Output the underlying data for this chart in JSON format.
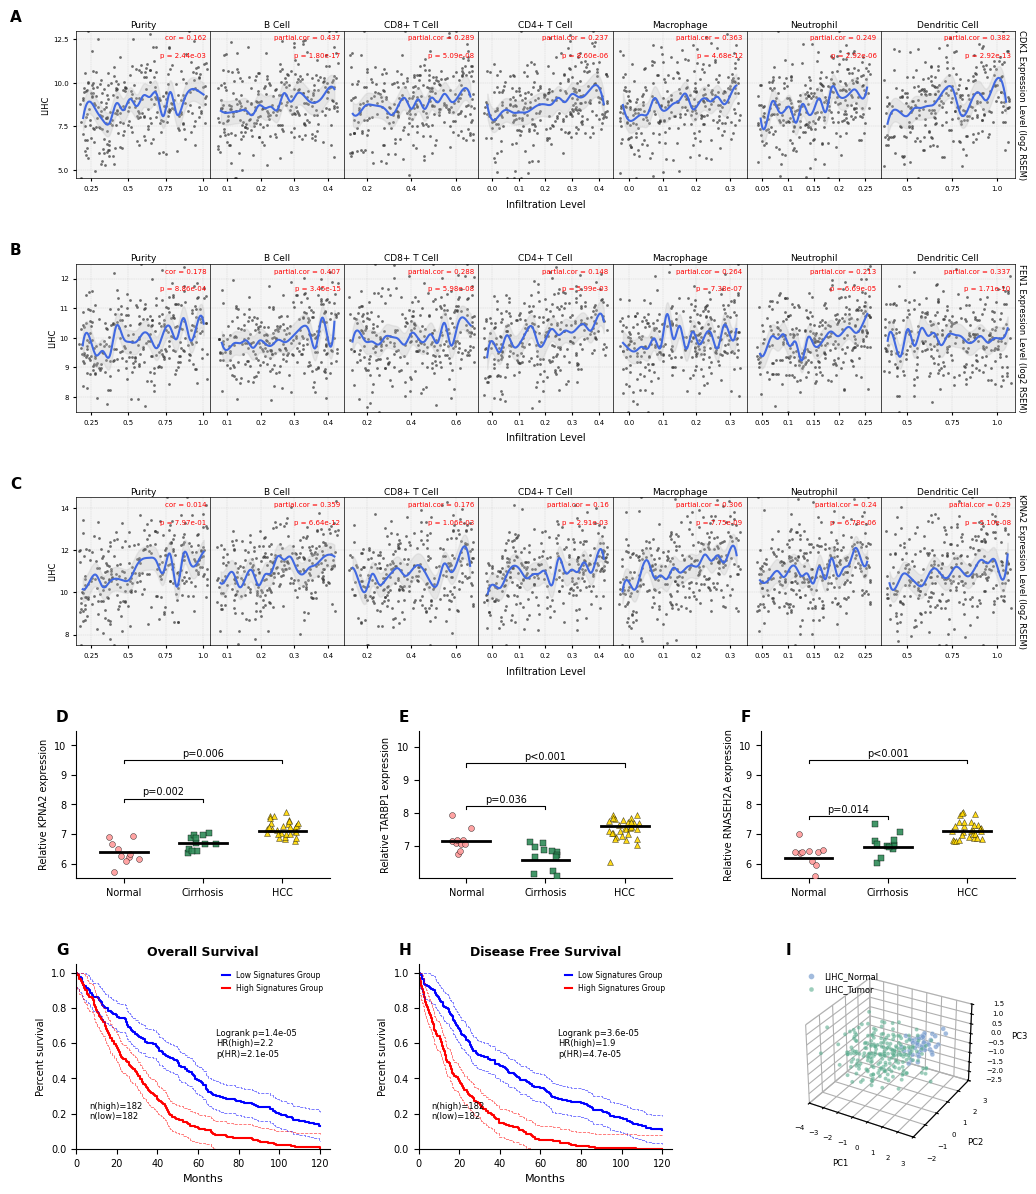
{
  "panel_labels": [
    "A",
    "B",
    "C",
    "D",
    "E",
    "F",
    "G",
    "H",
    "I"
  ],
  "scatter_titles": [
    "Purity",
    "B Cell",
    "CD8+ T Cell",
    "CD4+ T Cell",
    "Macrophage",
    "Neutrophil",
    "Dendritic Cell"
  ],
  "row_A": {
    "gene": "CDK1",
    "ylabel": "CDK1 Expression Level (log2 RSEM)",
    "ylim": [
      4.5,
      13
    ],
    "yticks": [
      5.0,
      7.5,
      10.0,
      12.5
    ],
    "panels": [
      {
        "label": "Purity",
        "cor_text": "cor = 0.162",
        "p_text": "p = 2.44e-03",
        "xlim": [
          0.15,
          1.05
        ],
        "xticks": [
          0.25,
          0.5,
          0.75,
          1.0
        ]
      },
      {
        "label": "B Cell",
        "cor_text": "partial.cor = 0.437",
        "p_text": "p = 1.80e-17",
        "xlim": [
          0.05,
          0.45
        ],
        "xticks": [
          0.1,
          0.2,
          0.3,
          0.4
        ]
      },
      {
        "label": "CD8+ T Cell",
        "cor_text": "partial.cor = 0.289",
        "p_text": "p = 5.09e-08",
        "xlim": [
          0.1,
          0.7
        ],
        "xticks": [
          0.2,
          0.4,
          0.6
        ]
      },
      {
        "label": "CD4+ T Cell",
        "cor_text": "partial.cor = 0.237",
        "p_text": "p = 8.60e-06",
        "xlim": [
          -0.05,
          0.45
        ],
        "xticks": [
          0.0,
          0.1,
          0.2,
          0.3,
          0.4
        ]
      },
      {
        "label": "Macrophage",
        "cor_text": "partial.cor = 0.363",
        "p_text": "p = 4.68e-12",
        "xlim": [
          -0.05,
          0.35
        ],
        "xticks": [
          0.0,
          0.1,
          0.2,
          0.3
        ]
      },
      {
        "label": "Neutrophil",
        "cor_text": "partial.cor = 0.249",
        "p_text": "p = 2.92e-06",
        "xlim": [
          0.02,
          0.28
        ],
        "xticks": [
          0.05,
          0.1,
          0.15,
          0.2,
          0.25
        ]
      },
      {
        "label": "Dendritic Cell",
        "cor_text": "partial.cor = 0.382",
        "p_text": "p = 2.92e-13",
        "xlim": [
          0.35,
          1.1
        ],
        "xticks": [
          0.5,
          0.75,
          1.0
        ]
      }
    ]
  },
  "row_B": {
    "gene": "FEN1",
    "ylabel": "FEN1 Expression Level (log2 RSEM)",
    "ylim": [
      7.5,
      12.5
    ],
    "yticks": [
      8,
      9,
      10,
      11,
      12
    ],
    "panels": [
      {
        "label": "Purity",
        "cor_text": "cor = 0.178",
        "p_text": "p = 8.86e-04",
        "xlim": [
          0.15,
          1.05
        ],
        "xticks": [
          0.25,
          0.5,
          0.75,
          1.0
        ]
      },
      {
        "label": "B Cell",
        "cor_text": "partial.cor = 0.407",
        "p_text": "p = 3.45e-15",
        "xlim": [
          0.05,
          0.45
        ],
        "xticks": [
          0.1,
          0.2,
          0.3,
          0.4
        ]
      },
      {
        "label": "CD8+ T Cell",
        "cor_text": "partial.cor = 0.288",
        "p_text": "p = 5.98e-08",
        "xlim": [
          0.1,
          0.7
        ],
        "xticks": [
          0.2,
          0.4,
          0.6
        ]
      },
      {
        "label": "CD4+ T Cell",
        "cor_text": "partial.cor = 0.148",
        "p_text": "p = 5.99e-03",
        "xlim": [
          -0.05,
          0.45
        ],
        "xticks": [
          0.0,
          0.1,
          0.2,
          0.3,
          0.4
        ]
      },
      {
        "label": "Macrophage",
        "cor_text": "partial.cor = 0.264",
        "p_text": "p = 7.38e-07",
        "xlim": [
          -0.05,
          0.35
        ],
        "xticks": [
          0.0,
          0.1,
          0.2,
          0.3
        ]
      },
      {
        "label": "Neutrophil",
        "cor_text": "partial.cor = 0.213",
        "p_text": "p = 6.69e-05",
        "xlim": [
          0.02,
          0.28
        ],
        "xticks": [
          0.05,
          0.1,
          0.15,
          0.2,
          0.25
        ]
      },
      {
        "label": "Dendritic Cell",
        "cor_text": "partial.cor = 0.337",
        "p_text": "p = 1.71e-10",
        "xlim": [
          0.35,
          1.1
        ],
        "xticks": [
          0.5,
          0.75,
          1.0
        ]
      }
    ]
  },
  "row_C": {
    "gene": "KPNA2",
    "ylabel": "KPNA2 Expression Level (log2 RSEM)",
    "ylim": [
      7.5,
      14.5
    ],
    "yticks": [
      8,
      10,
      12,
      14
    ],
    "panels": [
      {
        "label": "Purity",
        "cor_text": "cor = 0.014",
        "p_text": "p = 7.97e-01",
        "xlim": [
          0.15,
          1.05
        ],
        "xticks": [
          0.25,
          0.5,
          0.75,
          1.0
        ]
      },
      {
        "label": "B Cell",
        "cor_text": "partial.cor = 0.359",
        "p_text": "p = 6.64e-12",
        "xlim": [
          0.05,
          0.45
        ],
        "xticks": [
          0.1,
          0.2,
          0.3,
          0.4
        ]
      },
      {
        "label": "CD8+ T Cell",
        "cor_text": "partial.cor = 0.176",
        "p_text": "p = 1.06e-03",
        "xlim": [
          0.1,
          0.7
        ],
        "xticks": [
          0.2,
          0.4,
          0.6
        ]
      },
      {
        "label": "CD4+ T Cell",
        "cor_text": "partial.cor = 0.16",
        "p_text": "p = 2.91e-03",
        "xlim": [
          -0.05,
          0.45
        ],
        "xticks": [
          0.0,
          0.1,
          0.2,
          0.3,
          0.4
        ]
      },
      {
        "label": "Macrophage",
        "cor_text": "partial.cor = 0.306",
        "p_text": "p = 7.75e-09",
        "xlim": [
          -0.05,
          0.35
        ],
        "xticks": [
          0.0,
          0.1,
          0.2,
          0.3
        ]
      },
      {
        "label": "Neutrophil",
        "cor_text": "partial.cor = 0.24",
        "p_text": "p = 6.78e-06",
        "xlim": [
          0.02,
          0.28
        ],
        "xticks": [
          0.05,
          0.1,
          0.15,
          0.2,
          0.25
        ]
      },
      {
        "label": "Dendritic Cell",
        "cor_text": "partial.cor = 0.29",
        "p_text": "p = 5.10e-08",
        "xlim": [
          0.35,
          1.1
        ],
        "xticks": [
          0.5,
          0.75,
          1.0
        ]
      }
    ]
  },
  "dot_plots": {
    "D": {
      "title": "D",
      "ylabel": "Relative KPNA2 expression",
      "groups": [
        "Normal",
        "Cirrhosis",
        "HCC"
      ],
      "colors": [
        "#FF9999",
        "#2E8B57",
        "#FFD700"
      ],
      "markers": [
        "o",
        "s",
        "^"
      ],
      "medians": [
        6.4,
        6.7,
        7.1
      ],
      "ylim": [
        5.5,
        10.5
      ],
      "yticks": [
        6,
        7,
        8,
        9,
        10
      ],
      "p_values": [
        {
          "group1": 0,
          "group2": 1,
          "p": "p=0.002",
          "y": 8.2
        },
        {
          "group1": 0,
          "group2": 2,
          "p": "p=0.006",
          "y": 9.5
        }
      ]
    },
    "E": {
      "title": "E",
      "ylabel": "Relative TARBP1 expression",
      "groups": [
        "Normal",
        "Cirrhosis",
        "HCC"
      ],
      "colors": [
        "#FF9999",
        "#2E8B57",
        "#FFD700"
      ],
      "markers": [
        "o",
        "s",
        "^"
      ],
      "medians": [
        7.15,
        6.55,
        7.6
      ],
      "ylim": [
        6.0,
        10.5
      ],
      "yticks": [
        7,
        8,
        9,
        10
      ],
      "p_values": [
        {
          "group1": 0,
          "group2": 1,
          "p": "p=0.036",
          "y": 8.2
        },
        {
          "group1": 0,
          "group2": 2,
          "p": "p<0.001",
          "y": 9.5
        }
      ]
    },
    "F": {
      "title": "F",
      "ylabel": "Relative RNASEH2A expression",
      "groups": [
        "Normal",
        "Cirrhosis",
        "HCC"
      ],
      "colors": [
        "#FF9999",
        "#2E8B57",
        "#FFD700"
      ],
      "markers": [
        "o",
        "s",
        "^"
      ],
      "medians": [
        6.2,
        6.55,
        7.1
      ],
      "ylim": [
        5.5,
        10.5
      ],
      "yticks": [
        6,
        7,
        8,
        9,
        10
      ],
      "p_values": [
        {
          "group1": 0,
          "group2": 1,
          "p": "p=0.014",
          "y": 7.6
        },
        {
          "group1": 0,
          "group2": 2,
          "p": "p<0.001",
          "y": 9.5
        }
      ]
    }
  },
  "survival_G": {
    "title": "Overall Survival",
    "xlabel": "Months",
    "ylabel": "Percent survival",
    "xlim": [
      0,
      125
    ],
    "ylim": [
      0.0,
      1.05
    ],
    "yticks": [
      0.0,
      0.2,
      0.4,
      0.6,
      0.8,
      1.0
    ],
    "xticks": [
      0,
      20,
      40,
      60,
      80,
      100,
      120
    ],
    "legend_text": "Low Signatures Group\nHigh Signatures Group\nLogrank p=1.4e-05\nHR(high)=2.2\np(HR)=2.1e-05",
    "n_text": "n(high)=182\nn(low)=182",
    "low_color": "#0000FF",
    "high_color": "#FF0000"
  },
  "survival_H": {
    "title": "Disease Free Survival",
    "xlabel": "Months",
    "ylabel": "Percent survival",
    "xlim": [
      0,
      125
    ],
    "ylim": [
      0.0,
      1.05
    ],
    "yticks": [
      0.0,
      0.2,
      0.4,
      0.6,
      0.8,
      1.0
    ],
    "xticks": [
      0,
      20,
      40,
      60,
      80,
      100,
      120
    ],
    "legend_text": "Low Signatures Group\nHigh Signatures Group\nLogrank p=3.6e-05\nHR(high)=1.9\np(HR)=4.7e-05",
    "n_text": "n(high)=182\nn(low)=182",
    "low_color": "#0000FF",
    "high_color": "#FF0000"
  },
  "pca": {
    "title": "I",
    "xlabel": "PC1",
    "ylabel": "PC2",
    "zlabel": "PC3",
    "legend": [
      "LIHC_Normal",
      "LIHC_Tumor"
    ],
    "normal_color": "#7B9FCF",
    "tumor_color": "#5BAD8F",
    "xlim": [
      -4,
      3
    ],
    "ylim": [
      -2,
      3
    ],
    "zlim": [
      -2.5,
      1.5
    ]
  },
  "bg_color": "#F5F5F5",
  "scatter_dot_color": "#333333",
  "trend_line_color": "#4169E1",
  "trend_fill_color": "#BBBBBB"
}
